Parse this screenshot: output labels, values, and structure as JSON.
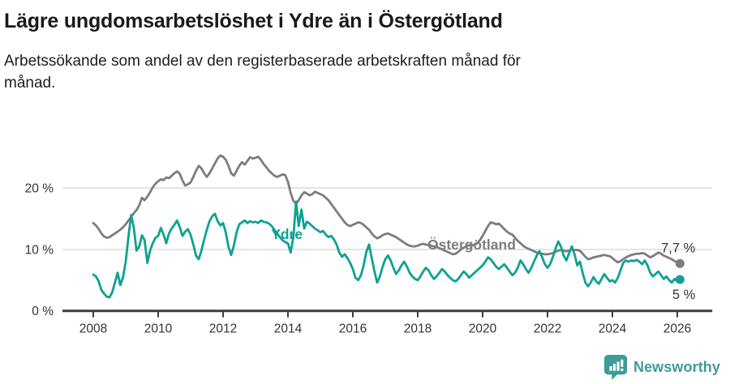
{
  "header": {
    "title": "Lägre ungdomsarbetslöshet i Ydre än i Östergötland",
    "subtitle": "Arbetssökande som andel av den registerbaserade arbetskraften månad för\nmånad."
  },
  "footer": {
    "brand": "Newsworthy",
    "brand_color": "#3e9c96",
    "logo_icon": "bar-chart-speech-bubble"
  },
  "chart_data": {
    "type": "line",
    "x_start_year": 2008,
    "x_step_months": 1,
    "x_axis": {
      "ticks": [
        2008,
        2010,
        2012,
        2014,
        2016,
        2018,
        2020,
        2022,
        2024,
        2026
      ],
      "range": [
        2007.05,
        2027.08
      ]
    },
    "y_axis": {
      "ticks": [
        0,
        10,
        20
      ],
      "tick_labels": [
        "0 %",
        "10 %",
        "20 %"
      ],
      "range": [
        0,
        26.5
      ],
      "unit": "%"
    },
    "grid": "horizontal",
    "legend": "inline-labels",
    "colors": {
      "grid": "#dedede",
      "axis": "#3d3d3d",
      "tick_text": "#333333",
      "value_label": "#333333"
    },
    "series": [
      {
        "name": "Östergötland",
        "color": "#7d7d7d",
        "label_pos": {
          "x": 2018.3,
          "y": 10.0
        },
        "end_label": "7,7 %",
        "end_label_side": "above",
        "values": [
          14.3,
          13.9,
          13.3,
          12.6,
          12.1,
          11.9,
          12.0,
          12.3,
          12.6,
          12.9,
          13.2,
          13.6,
          14.1,
          14.7,
          15.3,
          15.9,
          16.4,
          17.2,
          18.4,
          18.0,
          18.6,
          19.3,
          20.1,
          20.7,
          21.1,
          21.4,
          21.3,
          21.7,
          21.6,
          22.0,
          22.4,
          22.7,
          22.3,
          21.2,
          20.4,
          20.6,
          20.9,
          21.8,
          22.8,
          23.6,
          23.2,
          22.4,
          21.8,
          22.4,
          23.2,
          24.0,
          24.8,
          25.3,
          25.1,
          24.6,
          23.6,
          22.4,
          22.0,
          22.8,
          23.6,
          24.2,
          23.8,
          24.4,
          25.0,
          24.8,
          24.9,
          25.1,
          24.6,
          23.9,
          23.4,
          22.8,
          22.4,
          22.0,
          21.8,
          22.0,
          22.2,
          22.1,
          21.0,
          19.2,
          17.9,
          17.4,
          18.0,
          18.8,
          19.3,
          19.1,
          18.8,
          19.0,
          19.4,
          19.2,
          19.0,
          18.8,
          18.4,
          18.0,
          17.4,
          16.8,
          16.2,
          15.6,
          15.0,
          14.4,
          14.0,
          13.8,
          14.0,
          14.2,
          14.4,
          14.3,
          14.0,
          13.6,
          13.2,
          12.6,
          12.1,
          11.8,
          12.0,
          12.3,
          12.5,
          12.6,
          12.4,
          12.2,
          12.0,
          11.7,
          11.4,
          11.1,
          10.8,
          10.6,
          10.5,
          10.5,
          10.6,
          10.8,
          10.9,
          10.8,
          10.7,
          10.6,
          10.5,
          10.4,
          10.2,
          10.0,
          9.8,
          9.6,
          9.4,
          9.2,
          9.3,
          9.6,
          10.0,
          10.3,
          10.5,
          10.7,
          10.6,
          10.8,
          11.0,
          11.5,
          12.2,
          13.0,
          13.8,
          14.4,
          14.3,
          14.1,
          14.2,
          13.8,
          13.3,
          12.9,
          12.6,
          12.4,
          11.9,
          11.4,
          11.0,
          10.6,
          10.3,
          10.1,
          9.9,
          9.7,
          9.5,
          9.4,
          9.3,
          9.2,
          9.2,
          9.3,
          9.4,
          9.6,
          9.8,
          9.9,
          9.8,
          9.7,
          9.8,
          10.0,
          9.9,
          9.9,
          9.8,
          9.3,
          8.8,
          8.4,
          8.5,
          8.7,
          8.8,
          8.9,
          9.0,
          9.1,
          9.0,
          8.9,
          8.6,
          8.2,
          7.9,
          8.1,
          8.4,
          8.7,
          8.9,
          9.1,
          9.2,
          9.3,
          9.3,
          9.4,
          9.3,
          9.0,
          8.7,
          8.9,
          9.2,
          9.5,
          9.3,
          9.0,
          8.8,
          8.6,
          8.4,
          8.1,
          7.9,
          7.7
        ]
      },
      {
        "name": "Ydre",
        "color": "#0fa193",
        "label_pos": {
          "x": 2013.48,
          "y": 11.7
        },
        "end_label": "5 %",
        "end_label_side": "below",
        "values": [
          5.9,
          5.6,
          4.8,
          3.4,
          2.8,
          2.3,
          2.2,
          3.0,
          4.6,
          6.2,
          4.2,
          5.5,
          8.0,
          12.0,
          15.6,
          13.5,
          9.8,
          10.5,
          12.3,
          11.5,
          7.8,
          9.8,
          11.0,
          11.9,
          12.2,
          13.5,
          12.4,
          11.0,
          12.6,
          13.4,
          14.0,
          14.7,
          13.6,
          12.2,
          12.9,
          13.3,
          12.4,
          10.8,
          9.0,
          8.4,
          9.8,
          11.6,
          13.2,
          14.6,
          15.4,
          15.8,
          14.6,
          13.9,
          14.3,
          12.8,
          10.4,
          9.1,
          10.6,
          12.8,
          14.1,
          14.4,
          14.7,
          14.3,
          14.6,
          14.4,
          14.5,
          14.3,
          14.7,
          14.5,
          14.4,
          14.2,
          13.8,
          13.2,
          12.6,
          12.0,
          11.5,
          11.2,
          11.0,
          9.5,
          12.0,
          17.8,
          13.8,
          16.5,
          13.4,
          14.5,
          14.2,
          13.8,
          13.4,
          13.1,
          12.8,
          13.0,
          12.4,
          12.0,
          12.2,
          11.6,
          10.8,
          9.5,
          8.8,
          9.2,
          8.6,
          7.8,
          6.8,
          5.4,
          5.0,
          5.8,
          7.4,
          9.6,
          10.8,
          8.6,
          6.4,
          4.6,
          5.6,
          7.2,
          8.4,
          9.0,
          8.2,
          7.0,
          6.0,
          6.6,
          7.4,
          8.0,
          7.2,
          6.2,
          5.6,
          5.2,
          5.0,
          5.6,
          6.4,
          7.0,
          6.6,
          5.8,
          5.2,
          5.6,
          6.2,
          6.8,
          6.4,
          5.8,
          5.4,
          5.0,
          4.8,
          5.2,
          5.8,
          6.4,
          6.0,
          5.4,
          5.8,
          6.2,
          6.6,
          7.0,
          7.4,
          8.0,
          8.7,
          8.4,
          7.8,
          7.2,
          6.8,
          7.2,
          7.6,
          7.0,
          6.4,
          5.8,
          6.2,
          7.0,
          8.2,
          7.6,
          6.8,
          6.2,
          7.0,
          8.0,
          9.0,
          9.7,
          8.8,
          7.6,
          7.0,
          7.6,
          8.8,
          10.2,
          11.3,
          10.4,
          9.0,
          8.2,
          9.4,
          10.5,
          9.2,
          7.4,
          8.0,
          6.2,
          4.6,
          4.0,
          4.6,
          5.5,
          4.8,
          4.4,
          5.2,
          6.0,
          5.4,
          4.8,
          5.0,
          4.6,
          5.4,
          6.6,
          7.8,
          8.2,
          8.0,
          8.2,
          8.1,
          8.3,
          8.0,
          7.6,
          8.2,
          7.4,
          6.2,
          5.6,
          6.0,
          6.4,
          5.8,
          5.2,
          5.6,
          5.0,
          4.6,
          5.2,
          4.8,
          5.1
        ]
      }
    ]
  }
}
